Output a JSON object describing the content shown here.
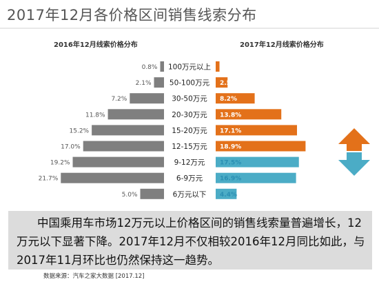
{
  "title": "2017年12月各价格区间销售线索分布",
  "chart_data": {
    "type": "bar",
    "categories": [
      "100万元以上",
      "50-100万元",
      "30-50万元",
      "20-30万元",
      "15-20万元",
      "12-15万元",
      "9-12万元",
      "6-9万元",
      "6万元以下"
    ],
    "series": [
      {
        "name": "2016年12月线索价格分布",
        "values": [
          0.8,
          2.1,
          7.2,
          11.8,
          15.2,
          17.0,
          19.2,
          21.7,
          5.0
        ],
        "labels": [
          "0.8%",
          "2.1%",
          "7.2%",
          "11.8%",
          "15.2%",
          "17.0%",
          "19.2%",
          "21.7%",
          "5.0%"
        ]
      },
      {
        "name": "2017年12月线索价格分布",
        "values": [
          0.8,
          2.5,
          8.2,
          13.8,
          17.1,
          18.9,
          17.5,
          16.9,
          4.4
        ],
        "labels": [
          "0.8%",
          "2.5%",
          "8.2%",
          "13.8%",
          "17.1%",
          "18.9%",
          "17.5%",
          "16.9%",
          "4.4%"
        ]
      }
    ]
  },
  "colors": {
    "left_bar": "#7f7f7f",
    "right_bar_up": "#e3711a",
    "right_bar_down": "#4bacc6",
    "arrow_up": "#e3711a",
    "arrow_down": "#4bacc6"
  },
  "summary": "中国乘用车市场12万元以上价格区间的销售线索量普遍增长，12万元以下显著下降。2017年12月不仅相较2016年12月同比如此，与2017年11月环比也仍然保持这一趋势。",
  "source": "数据来源：汽车之家大数据 [2017.12]"
}
